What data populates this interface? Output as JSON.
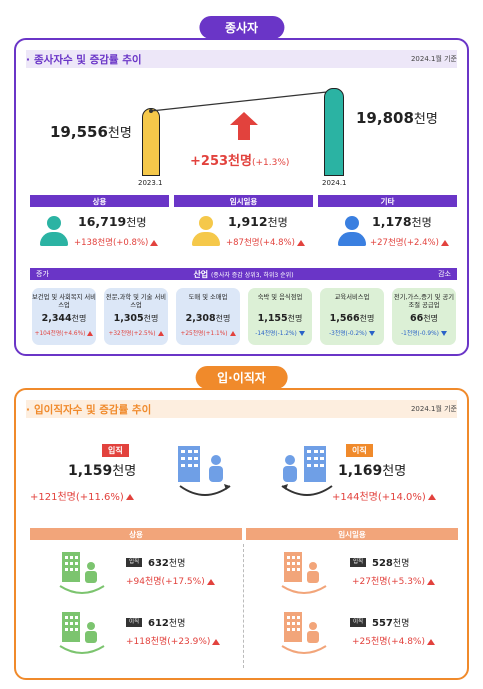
{
  "employees": {
    "title": "종사자",
    "header": "종사자수 및 증감률 추이",
    "date": "2024.1월 기준",
    "left": {
      "value": "19,556",
      "unit": "천명",
      "label": "2023.1"
    },
    "right": {
      "value": "19,808",
      "unit": "천명",
      "label": "2024.1"
    },
    "change": {
      "value": "+253천명",
      "pct": "(+1.3%)"
    },
    "categories": [
      {
        "name": "상용",
        "value": "16,719",
        "unit": "천명",
        "change": "+138천명(+0.8%)"
      },
      {
        "name": "임시일용",
        "value": "1,912",
        "unit": "천명",
        "change": "+87천명(+4.8%)"
      },
      {
        "name": "기타",
        "value": "1,178",
        "unit": "천명",
        "change": "+27천명(+2.4%)"
      }
    ],
    "industry_bar": {
      "left": "증가",
      "title": "산업",
      "sub": "(종사자 증감 상위3, 하위3 순위)",
      "right": "감소"
    },
    "industries": [
      {
        "name": "보건업 및 사회복지 서비스업",
        "value": "2,344",
        "unit": "천명",
        "change": "+104천명(+4.6%)",
        "dir": "up"
      },
      {
        "name": "전문,과학 및 기술 서비스업",
        "value": "1,305",
        "unit": "천명",
        "change": "+32천명(+2.5%)",
        "dir": "up"
      },
      {
        "name": "도매 및 소매업",
        "value": "2,308",
        "unit": "천명",
        "change": "+25천명(+1.1%)",
        "dir": "up"
      },
      {
        "name": "숙박 및 음식점업",
        "value": "1,155",
        "unit": "천명",
        "change": "-14천명(-1.2%)",
        "dir": "down"
      },
      {
        "name": "교육서비스업",
        "value": "1,566",
        "unit": "천명",
        "change": "-3천명(-0.2%)",
        "dir": "down"
      },
      {
        "name": "전기,가스,증기 및 공기조절 공급업",
        "value": "66",
        "unit": "천명",
        "change": "-1천명(-0.9%)",
        "dir": "down"
      }
    ]
  },
  "turnover": {
    "title": "입·이직자",
    "header": "입이직자수 및 증감률 추이",
    "date": "2024.1월 기준",
    "entry": {
      "tag": "입직",
      "value": "1,159",
      "unit": "천명",
      "change": "+121천명(+11.6%)"
    },
    "exit": {
      "tag": "이직",
      "value": "1,169",
      "unit": "천명",
      "change": "+144천명(+14.0%)"
    },
    "regular": {
      "label": "상용",
      "entry": {
        "tag": "입직",
        "value": "632",
        "unit": "천명",
        "change": "+94천명(+17.5%)"
      },
      "exit": {
        "tag": "이직",
        "value": "612",
        "unit": "천명",
        "change": "+118천명(+23.9%)"
      }
    },
    "temporary": {
      "label": "임시일용",
      "entry": {
        "tag": "입직",
        "value": "528",
        "unit": "천명",
        "change": "+27천명(+5.3%)"
      },
      "exit": {
        "tag": "이직",
        "value": "557",
        "unit": "천명",
        "change": "+25천명(+4.8%)"
      }
    }
  },
  "colors": {
    "purple": "#6a35c7",
    "orange": "#f08a2b",
    "red": "#e2423d",
    "blue": "#2a62c8",
    "teal": "#2bb3a3",
    "yellow": "#f5c84a",
    "person_blue": "#3a7fe0",
    "building_blue": "#6f9fe6",
    "building_green": "#7cc46f",
    "building_orange": "#f2a57a"
  }
}
